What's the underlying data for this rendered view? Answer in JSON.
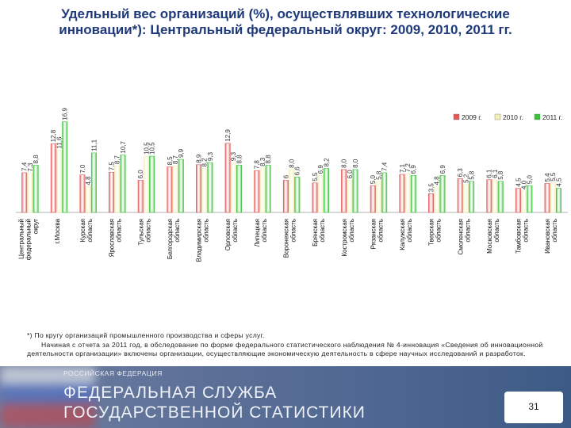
{
  "title": "Удельный вес организаций (%), осуществлявших технологические инновации*): Центральный федеральный округ: 2009, 2010, 2011 гг.",
  "footnote": {
    "line1": "*) По кругу организаций промышленного производства и сферы услуг.",
    "line2": "Начиная с отчета за 2011 год, в обследование по форме федерального статистического наблюдения № 4-инновация «Сведения об инновационной деятельности организации» включены организации, осуществляющие экономическую деятельность в сфере научных исследований и разработок."
  },
  "banner": {
    "line1": "РОССИЙСКАЯ ФЕДЕРАЦИЯ",
    "line2": "ФЕДЕРАЛЬНАЯ СЛУЖБА",
    "line3": "ГОСУДАРСТВЕННОЙ СТАТИСТИКИ"
  },
  "page_number": "31",
  "colors": {
    "s2009": "#e05a5a",
    "s2010": "#f2eeb8",
    "s2011": "#3ec23e",
    "title": "#1f3a7a"
  },
  "chart_data": {
    "type": "bar",
    "title": "Удельный вес организаций (%), осуществлявших технологические инновации*): Центральный федеральный округ: 2009, 2010, 2011 гг.",
    "categories": [
      "Центральный федеральный округ",
      "г.Москва",
      "Курская область",
      "Ярославская область",
      "Тульская область",
      "Белгородская область",
      "Владимирская область",
      "Орловская область",
      "Липецкая область",
      "Воронежская область",
      "Брянская область",
      "Костромская область",
      "Рязанская область",
      "Калужская область",
      "Тверская область",
      "Смоленская область",
      "Московская область",
      "Тамбовская область",
      "Ивановская область"
    ],
    "value_labels": {
      "2009": [
        "7,4",
        "12,8",
        "7,0",
        "7,5",
        "6,0",
        "8,5",
        "8,9",
        "12,9",
        "7,8",
        "6",
        "5,5",
        "8,0",
        "5,0",
        "7,1",
        "3,5",
        "6,3",
        "6,1",
        "4,5",
        "5,4"
      ],
      "2010": [
        "7,3",
        "11,6",
        "4,8",
        "8,7",
        "10,5",
        "8,7",
        "8,2",
        "9,3",
        "8,3",
        "8,0",
        "6,9",
        "6,0",
        "5,8",
        "7,2",
        "4,8",
        "5,2",
        "6,1",
        "4,0",
        "5,5"
      ],
      "2011": [
        "8,8",
        "16,9",
        "11,1",
        "10,7",
        "10,5",
        "9,9",
        "9,3",
        "8,8",
        "8,8",
        "6,6",
        "8,2",
        "8,0",
        "7,4",
        "6,9",
        "6,9",
        "5,8",
        "5,8",
        "5,0",
        "4,5"
      ]
    },
    "series": [
      {
        "name": "2009 г.",
        "values": [
          7.4,
          12.8,
          7.0,
          7.5,
          6.0,
          8.5,
          8.9,
          12.9,
          7.8,
          6.0,
          5.5,
          8.0,
          5.0,
          7.1,
          3.5,
          6.3,
          6.1,
          4.5,
          5.4
        ]
      },
      {
        "name": "2010 г.",
        "values": [
          7.3,
          11.6,
          4.8,
          8.7,
          10.5,
          8.7,
          8.2,
          9.3,
          8.3,
          8.0,
          6.9,
          6.0,
          5.8,
          7.2,
          4.8,
          5.2,
          6.1,
          4.0,
          5.5
        ]
      },
      {
        "name": "2011 г.",
        "values": [
          8.8,
          16.9,
          11.1,
          10.7,
          10.5,
          9.9,
          9.3,
          8.8,
          8.8,
          6.6,
          8.2,
          8.0,
          7.4,
          6.9,
          6.9,
          5.8,
          5.8,
          5.0,
          4.5
        ]
      }
    ],
    "ylim": [
      0,
      17
    ],
    "legend": "top-right"
  }
}
